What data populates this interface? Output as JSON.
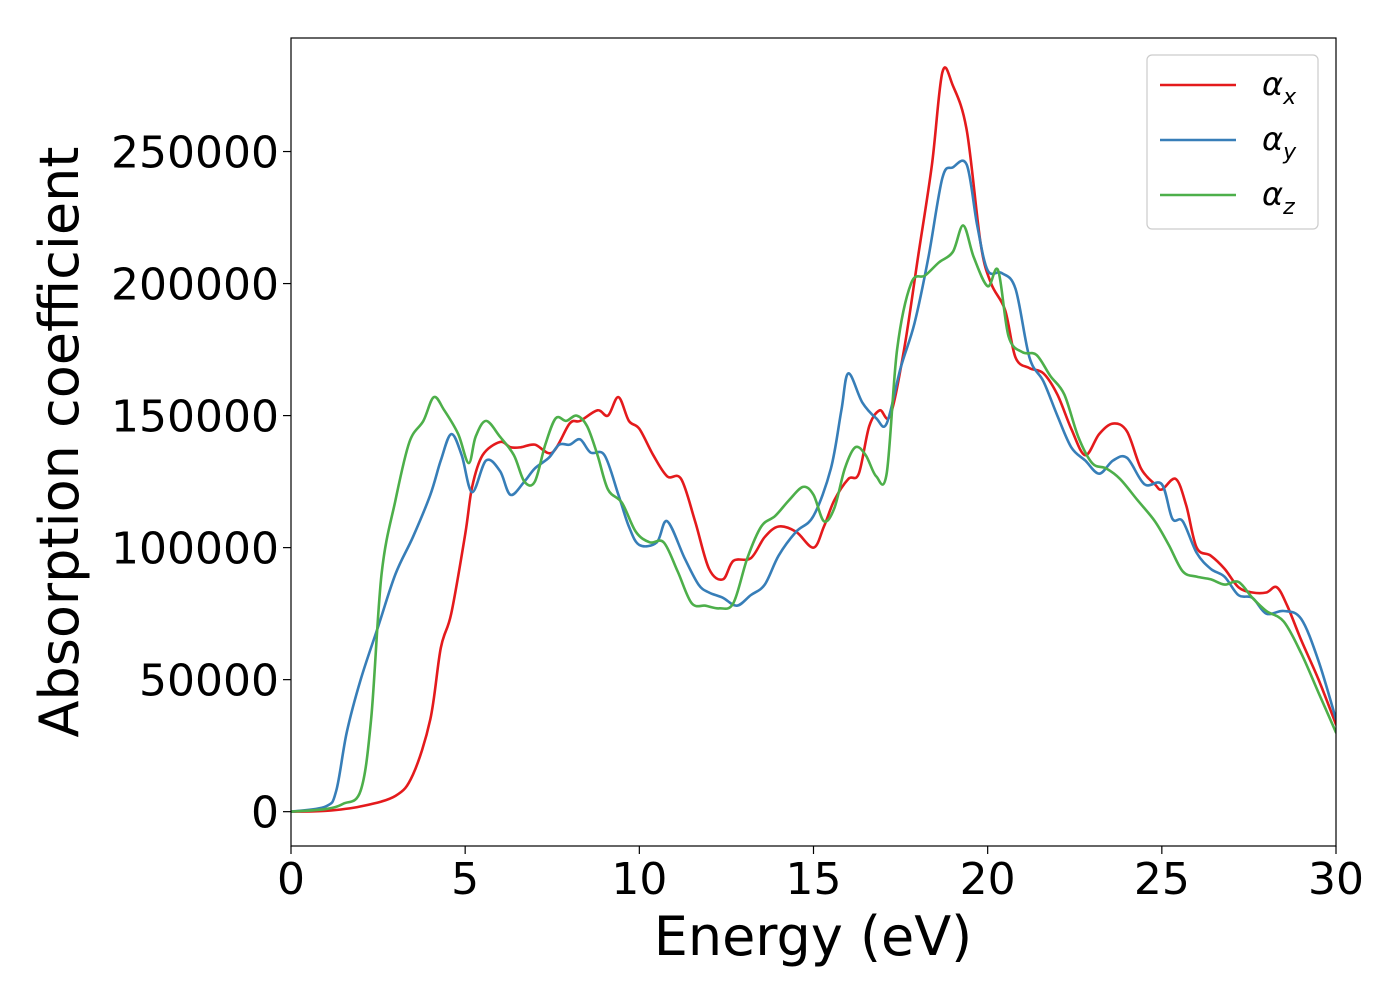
{
  "chart_data": {
    "type": "line",
    "xlabel": "Energy (eV)",
    "ylabel": "Absorption coefficient",
    "xlim": [
      0,
      30
    ],
    "ylim": [
      -13000,
      293000
    ],
    "xticks": [
      0,
      5,
      10,
      15,
      20,
      25,
      30
    ],
    "xtick_labels": [
      "0",
      "5",
      "10",
      "15",
      "20",
      "25",
      "30"
    ],
    "yticks": [
      0,
      50000,
      100000,
      150000,
      200000,
      250000
    ],
    "ytick_labels": [
      "0",
      "50000",
      "100000",
      "150000",
      "200000",
      "250000"
    ],
    "grid": false,
    "legend_position": "top-right",
    "series": [
      {
        "name": "α",
        "subscript": "x",
        "color": "#e41a1c",
        "x": [
          0,
          1,
          2,
          3,
          3.5,
          4,
          4.3,
          4.6,
          5,
          5.2,
          5.5,
          6,
          6.3,
          6.6,
          7,
          7.5,
          8,
          8.3,
          8.8,
          9.1,
          9.4,
          9.7,
          10,
          10.4,
          10.8,
          11.2,
          11.6,
          12,
          12.4,
          12.7,
          13.2,
          13.6,
          14,
          14.5,
          15,
          15.3,
          15.6,
          16,
          16.3,
          16.6,
          16.9,
          17.2,
          17.6,
          18,
          18.4,
          18.7,
          19,
          19.4,
          19.8,
          20.1,
          20.5,
          20.8,
          21.2,
          21.6,
          22,
          22.4,
          22.8,
          23.2,
          23.6,
          24,
          24.4,
          24.8,
          25,
          25.4,
          25.7,
          26,
          26.4,
          26.8,
          27.2,
          27.6,
          28,
          28.3,
          28.6,
          29,
          29.5,
          30
        ],
        "y": [
          0,
          300,
          2000,
          6000,
          14000,
          35000,
          62000,
          75000,
          105000,
          123000,
          135000,
          140000,
          138000,
          138000,
          139000,
          136000,
          147000,
          148000,
          152000,
          150000,
          157000,
          148000,
          145000,
          135000,
          127000,
          126000,
          110000,
          92000,
          88000,
          95000,
          96000,
          104000,
          108000,
          106000,
          100000,
          108000,
          118000,
          126000,
          128000,
          146000,
          152000,
          150000,
          175000,
          210000,
          245000,
          280000,
          275000,
          258000,
          215000,
          200000,
          190000,
          172000,
          168000,
          166000,
          158000,
          145000,
          135000,
          143000,
          147000,
          144000,
          130000,
          124000,
          122000,
          126000,
          116000,
          100000,
          97000,
          92000,
          85000,
          83000,
          83000,
          85000,
          78000,
          65000,
          50000,
          33000
        ]
      },
      {
        "name": "α",
        "subscript": "y",
        "color": "#377eb8",
        "x": [
          0,
          1,
          1.3,
          1.6,
          2,
          2.5,
          3,
          3.5,
          4,
          4.3,
          4.6,
          4.9,
          5.2,
          5.6,
          6,
          6.3,
          6.7,
          7,
          7.4,
          7.7,
          8,
          8.3,
          8.6,
          9,
          9.4,
          9.7,
          10,
          10.5,
          10.8,
          11.3,
          11.7,
          12,
          12.4,
          12.8,
          13.2,
          13.6,
          14,
          14.5,
          15,
          15.5,
          15.8,
          16,
          16.4,
          16.8,
          17.1,
          17.5,
          17.9,
          18.3,
          18.7,
          19,
          19.4,
          19.7,
          20,
          20.4,
          20.8,
          21.2,
          21.6,
          22,
          22.4,
          22.8,
          23.2,
          23.6,
          24,
          24.5,
          25,
          25.3,
          25.6,
          26,
          26.4,
          26.8,
          27.2,
          27.6,
          28,
          28.5,
          29,
          29.5,
          30
        ],
        "y": [
          0,
          2000,
          8000,
          30000,
          50000,
          70000,
          90000,
          104000,
          120000,
          133000,
          143000,
          135000,
          121000,
          133000,
          129000,
          120000,
          125000,
          130000,
          134000,
          139000,
          139000,
          141000,
          136000,
          135000,
          120000,
          108000,
          101000,
          102000,
          110000,
          96000,
          86000,
          83000,
          81000,
          78000,
          82000,
          86000,
          97000,
          106000,
          112000,
          130000,
          152000,
          166000,
          155000,
          149000,
          147000,
          168000,
          185000,
          210000,
          240000,
          244000,
          245000,
          222000,
          205000,
          204000,
          198000,
          172000,
          163000,
          150000,
          138000,
          133000,
          128000,
          133000,
          134000,
          124000,
          124000,
          111000,
          110000,
          98000,
          92000,
          89000,
          82000,
          81000,
          75000,
          76000,
          73000,
          57000,
          35000
        ]
      },
      {
        "name": "α",
        "subscript": "z",
        "color": "#4daf4a",
        "x": [
          0,
          1,
          1.5,
          2,
          2.3,
          2.6,
          3,
          3.4,
          3.8,
          4.1,
          4.4,
          4.8,
          5.1,
          5.3,
          5.6,
          6,
          6.4,
          6.7,
          7,
          7.3,
          7.6,
          7.9,
          8.2,
          8.5,
          8.8,
          9.1,
          9.5,
          9.9,
          10.3,
          10.7,
          11.1,
          11.5,
          11.9,
          12.3,
          12.7,
          13.1,
          13.5,
          13.9,
          14.3,
          14.7,
          15,
          15.3,
          15.6,
          15.9,
          16.2,
          16.5,
          16.8,
          17.1,
          17.4,
          17.8,
          18.2,
          18.6,
          19,
          19.3,
          19.6,
          20,
          20.3,
          20.6,
          21,
          21.4,
          21.8,
          22.2,
          22.6,
          23,
          23.4,
          23.8,
          24.3,
          24.8,
          25.2,
          25.6,
          26,
          26.4,
          26.8,
          27.2,
          27.6,
          28,
          28.5,
          29,
          29.5,
          30
        ],
        "y": [
          0,
          1000,
          3000,
          8000,
          35000,
          90000,
          118000,
          140000,
          148000,
          157000,
          152000,
          143000,
          132000,
          142000,
          148000,
          142000,
          135000,
          125000,
          125000,
          139000,
          149000,
          148000,
          150000,
          146000,
          135000,
          122000,
          117000,
          106000,
          102000,
          102000,
          91000,
          79000,
          78000,
          77000,
          79000,
          96000,
          108000,
          112000,
          118000,
          123000,
          120000,
          110000,
          115000,
          130000,
          138000,
          135000,
          127000,
          128000,
          175000,
          200000,
          203000,
          208000,
          212000,
          222000,
          210000,
          199000,
          205000,
          180000,
          174000,
          173000,
          165000,
          158000,
          142000,
          132000,
          130000,
          126000,
          118000,
          110000,
          101000,
          91000,
          89000,
          88000,
          86000,
          87000,
          81000,
          76000,
          72000,
          60000,
          45000,
          30000
        ]
      }
    ]
  }
}
